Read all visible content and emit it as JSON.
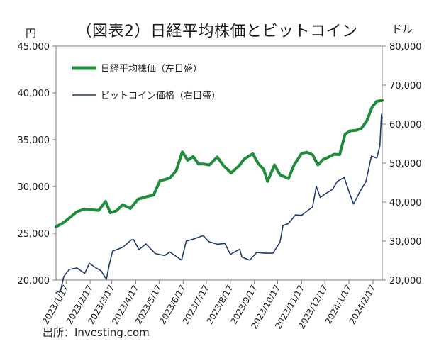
{
  "figure": {
    "title": "（図表2）日経平均株価とビットコイン",
    "left_unit": "円",
    "right_unit": "ドル",
    "source": "出所：Investing.com"
  },
  "chart_data": {
    "type": "line",
    "x_tick_labels": [
      "2023/1/17",
      "2023/2/17",
      "2023/3/17",
      "2023/4/17",
      "2023/5/17",
      "2023/6/17",
      "2023/7/17",
      "2023/8/17",
      "2023/9/17",
      "2023/10/17",
      "2023/11/17",
      "2023/12/17",
      "2024/1/17",
      "2024/2/17"
    ],
    "x_range": [
      "2023-01-04",
      "2024-02-29"
    ],
    "y_left": {
      "range": [
        20000,
        45000
      ],
      "ticks": [
        20000,
        25000,
        30000,
        35000,
        40000,
        45000
      ],
      "tick_labels": [
        "20,000",
        "25,000",
        "30,000",
        "35,000",
        "40,000",
        "45,000"
      ]
    },
    "y_right": {
      "range": [
        20000,
        80000
      ],
      "ticks": [
        20000,
        30000,
        40000,
        50000,
        60000,
        70000,
        80000
      ],
      "tick_labels": [
        "20,000",
        "30,000",
        "40,000",
        "50,000",
        "60,000",
        "70,000",
        "80,000"
      ]
    },
    "grid": false,
    "legend_position": "top-left",
    "series": [
      {
        "name": "日経平均株価（左目盛）",
        "axis": "left",
        "color": "#1e8c3a",
        "points": [
          [
            "2023-01-04",
            25700
          ],
          [
            "2023-01-13",
            26100
          ],
          [
            "2023-01-20",
            26550
          ],
          [
            "2023-01-31",
            27300
          ],
          [
            "2023-02-10",
            27600
          ],
          [
            "2023-02-20",
            27500
          ],
          [
            "2023-02-28",
            27450
          ],
          [
            "2023-03-09",
            28400
          ],
          [
            "2023-03-15",
            27200
          ],
          [
            "2023-03-23",
            27400
          ],
          [
            "2023-03-31",
            28050
          ],
          [
            "2023-04-10",
            27650
          ],
          [
            "2023-04-20",
            28650
          ],
          [
            "2023-04-28",
            28850
          ],
          [
            "2023-05-10",
            29100
          ],
          [
            "2023-05-18",
            30600
          ],
          [
            "2023-05-31",
            30900
          ],
          [
            "2023-06-08",
            31700
          ],
          [
            "2023-06-16",
            33700
          ],
          [
            "2023-06-23",
            32800
          ],
          [
            "2023-06-30",
            33200
          ],
          [
            "2023-07-07",
            32400
          ],
          [
            "2023-07-14",
            32400
          ],
          [
            "2023-07-21",
            32300
          ],
          [
            "2023-07-31",
            33150
          ],
          [
            "2023-08-08",
            32250
          ],
          [
            "2023-08-18",
            31450
          ],
          [
            "2023-08-28",
            32200
          ],
          [
            "2023-09-04",
            32950
          ],
          [
            "2023-09-15",
            33500
          ],
          [
            "2023-09-22",
            32450
          ],
          [
            "2023-09-29",
            31850
          ],
          [
            "2023-10-04",
            30550
          ],
          [
            "2023-10-13",
            32300
          ],
          [
            "2023-10-20",
            31250
          ],
          [
            "2023-10-31",
            30850
          ],
          [
            "2023-11-07",
            32250
          ],
          [
            "2023-11-17",
            33550
          ],
          [
            "2023-11-24",
            33650
          ],
          [
            "2023-12-01",
            33400
          ],
          [
            "2023-12-08",
            32300
          ],
          [
            "2023-12-15",
            32900
          ],
          [
            "2023-12-22",
            33150
          ],
          [
            "2023-12-29",
            33450
          ],
          [
            "2024-01-05",
            33400
          ],
          [
            "2024-01-12",
            35600
          ],
          [
            "2024-01-19",
            35950
          ],
          [
            "2024-01-26",
            36000
          ],
          [
            "2024-02-02",
            36200
          ],
          [
            "2024-02-09",
            37000
          ],
          [
            "2024-02-16",
            38500
          ],
          [
            "2024-02-22",
            39100
          ],
          [
            "2024-02-29",
            39200
          ]
        ]
      },
      {
        "name": "ビットコイン価格（右目盛）",
        "axis": "right",
        "color": "#1f3a6e",
        "points": [
          [
            "2023-01-04",
            16700
          ],
          [
            "2023-01-10",
            17400
          ],
          [
            "2023-01-14",
            20900
          ],
          [
            "2023-01-21",
            22700
          ],
          [
            "2023-01-31",
            23100
          ],
          [
            "2023-02-10",
            21700
          ],
          [
            "2023-02-16",
            24300
          ],
          [
            "2023-02-24",
            23200
          ],
          [
            "2023-03-03",
            22400
          ],
          [
            "2023-03-10",
            20200
          ],
          [
            "2023-03-14",
            24200
          ],
          [
            "2023-03-18",
            27400
          ],
          [
            "2023-03-31",
            28400
          ],
          [
            "2023-04-11",
            30300
          ],
          [
            "2023-04-14",
            30400
          ],
          [
            "2023-04-21",
            27800
          ],
          [
            "2023-04-30",
            29300
          ],
          [
            "2023-05-12",
            26800
          ],
          [
            "2023-05-24",
            26300
          ],
          [
            "2023-05-31",
            27200
          ],
          [
            "2023-06-15",
            25100
          ],
          [
            "2023-06-21",
            30000
          ],
          [
            "2023-06-30",
            30500
          ],
          [
            "2023-07-13",
            31400
          ],
          [
            "2023-07-20",
            29900
          ],
          [
            "2023-07-31",
            29200
          ],
          [
            "2023-08-10",
            29400
          ],
          [
            "2023-08-17",
            26600
          ],
          [
            "2023-08-29",
            27900
          ],
          [
            "2023-09-01",
            25900
          ],
          [
            "2023-09-11",
            25100
          ],
          [
            "2023-09-20",
            27100
          ],
          [
            "2023-09-30",
            26900
          ],
          [
            "2023-10-11",
            26900
          ],
          [
            "2023-10-20",
            29700
          ],
          [
            "2023-10-24",
            34000
          ],
          [
            "2023-10-31",
            34500
          ],
          [
            "2023-11-09",
            36700
          ],
          [
            "2023-11-17",
            36600
          ],
          [
            "2023-11-24",
            37700
          ],
          [
            "2023-12-01",
            38700
          ],
          [
            "2023-12-06",
            44000
          ],
          [
            "2023-12-11",
            41200
          ],
          [
            "2023-12-19",
            42300
          ],
          [
            "2023-12-27",
            43300
          ],
          [
            "2024-01-02",
            45300
          ],
          [
            "2024-01-11",
            46300
          ],
          [
            "2024-01-17",
            42700
          ],
          [
            "2024-01-23",
            39500
          ],
          [
            "2024-01-31",
            42600
          ],
          [
            "2024-02-08",
            45300
          ],
          [
            "2024-02-15",
            51800
          ],
          [
            "2024-02-22",
            51300
          ],
          [
            "2024-02-26",
            54500
          ],
          [
            "2024-02-28",
            62500
          ],
          [
            "2024-02-29",
            61500
          ]
        ]
      }
    ]
  }
}
